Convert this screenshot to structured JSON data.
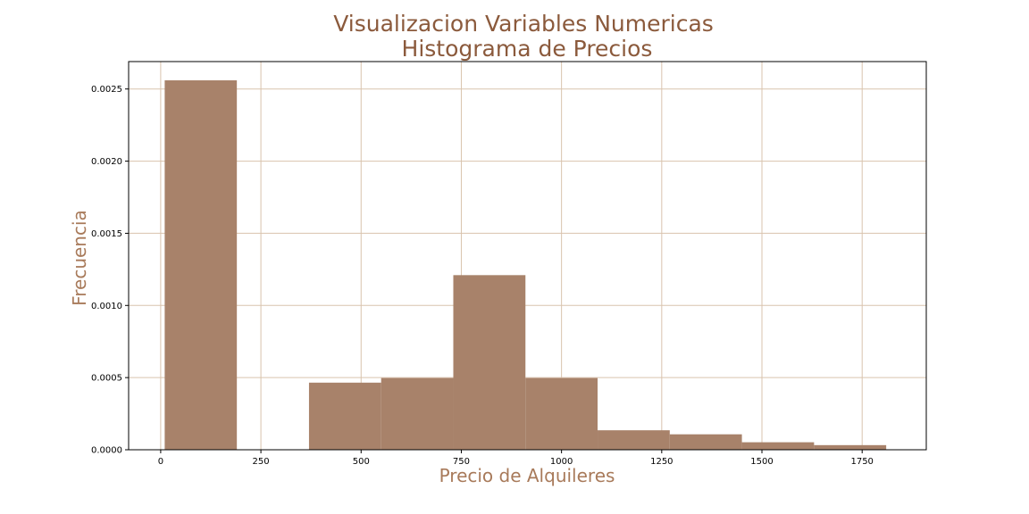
{
  "chart_data": {
    "type": "bar",
    "title": "Visualizacion Variables Numericas",
    "subtitle": "Histograma de Precios",
    "xlabel": "Precio de Alquileres",
    "ylabel": "Frecuencia",
    "xlim": [
      -80,
      1910
    ],
    "ylim": [
      0,
      0.00269
    ],
    "xticks": [
      0,
      250,
      500,
      750,
      1000,
      1250,
      1500,
      1750
    ],
    "yticks": [
      0.0,
      0.0005,
      0.001,
      0.0015,
      0.002,
      0.0025
    ],
    "ytick_labels": [
      "0.0000",
      "0.0005",
      "0.0010",
      "0.0015",
      "0.0020",
      "0.0025"
    ],
    "grid": true,
    "bin_edges": [
      10,
      190,
      370,
      550,
      730,
      910,
      1090,
      1270,
      1450,
      1630,
      1810
    ],
    "values": [
      0.00256,
      0.0,
      0.000465,
      0.000497,
      0.00121,
      0.000497,
      0.000135,
      0.000107,
      5.2e-05,
      3.2e-05
    ],
    "bar_color": "#a8826a",
    "grid_color": "#d9c3ad",
    "title_color": "#8b5a3c",
    "label_color": "#a87a5a"
  }
}
